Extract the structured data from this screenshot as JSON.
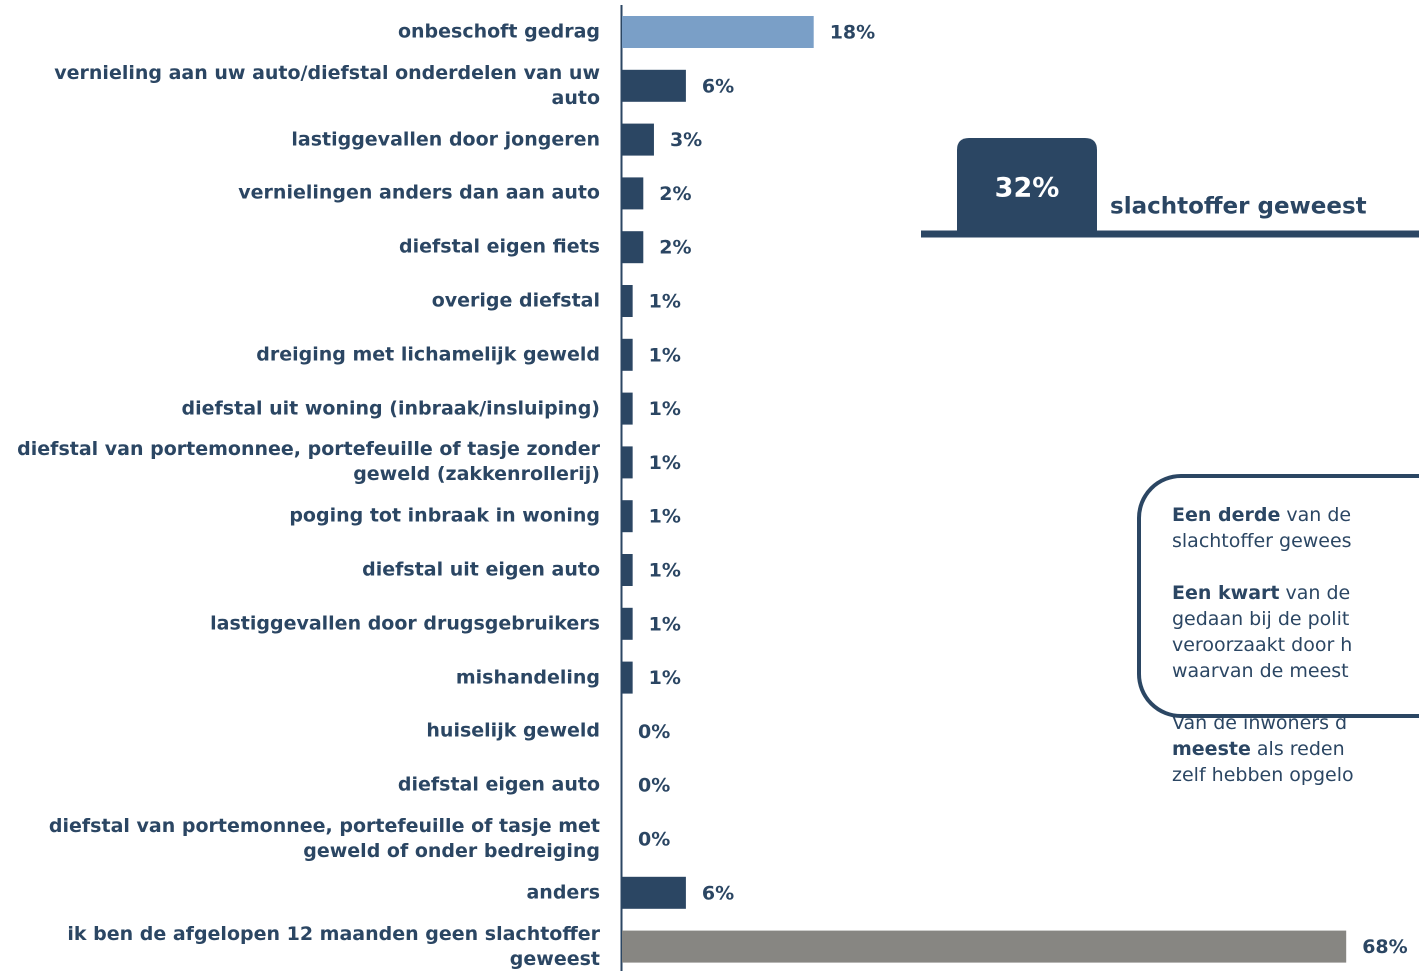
{
  "chart_data": {
    "type": "bar",
    "orientation": "horizontal",
    "categories": [
      "onbeschoft gedrag",
      "vernieling aan uw auto/diefstal onderdelen van uw auto",
      "lastiggevallen door jongeren",
      "vernielingen anders dan aan auto",
      "diefstal eigen fiets",
      "overige diefstal",
      "dreiging met lichamelijk geweld",
      "diefstal uit woning (inbraak/insluiping)",
      "diefstal van portemonnee, portefeuille of tasje zonder geweld (zakkenrollerij)",
      "poging tot inbraak in woning",
      "diefstal uit eigen auto",
      "lastiggevallen door drugsgebruikers",
      "mishandeling",
      "huiselijk geweld",
      "diefstal eigen auto",
      "diefstal van portemonnee, portefeuille of tasje met geweld of onder bedreiging",
      "anders",
      "ik ben de afgelopen 12 maanden geen slachtoffer geweest"
    ],
    "values": [
      18,
      6,
      3,
      2,
      2,
      1,
      1,
      1,
      1,
      1,
      1,
      1,
      1,
      0,
      0,
      0,
      6,
      68
    ],
    "value_labels": [
      "18%",
      "6%",
      "3%",
      "2%",
      "2%",
      "1%",
      "1%",
      "1%",
      "1%",
      "1%",
      "1%",
      "1%",
      "1%",
      "0%",
      "0%",
      "0%",
      "6%",
      "68%"
    ],
    "colors": [
      "#7a9fc7",
      "#2b4663",
      "#2b4663",
      "#2b4663",
      "#2b4663",
      "#2b4663",
      "#2b4663",
      "#2b4663",
      "#2b4663",
      "#2b4663",
      "#2b4663",
      "#2b4663",
      "#2b4663",
      "#2b4663",
      "#2b4663",
      "#2b4663",
      "#2b4663",
      "#878682"
    ],
    "badge": {
      "value_label": "32%",
      "text": "slachtoffer geweest"
    },
    "callout": [
      [
        {
          "text": "Een derde",
          "bold": true
        },
        {
          "text": " van de",
          "bold": false
        }
      ],
      [
        {
          "text": "slachtoffer gewees",
          "bold": false
        }
      ],
      [],
      [
        {
          "text": "Een kwart",
          "bold": true
        },
        {
          "text": " van de",
          "bold": false
        }
      ],
      [
        {
          "text": "gedaan bij de polit",
          "bold": false
        }
      ],
      [
        {
          "text": "veroorzaakt door h",
          "bold": false
        }
      ],
      [
        {
          "text": "waarvan de meest",
          "bold": false
        }
      ],
      [],
      [
        {
          "text": "Van de inwoners d",
          "bold": false
        }
      ],
      [
        {
          "text": "meeste",
          "bold": true
        },
        {
          "text": " als reden",
          "bold": false
        }
      ],
      [
        {
          "text": "zelf hebben opgelo",
          "bold": false
        }
      ]
    ]
  }
}
